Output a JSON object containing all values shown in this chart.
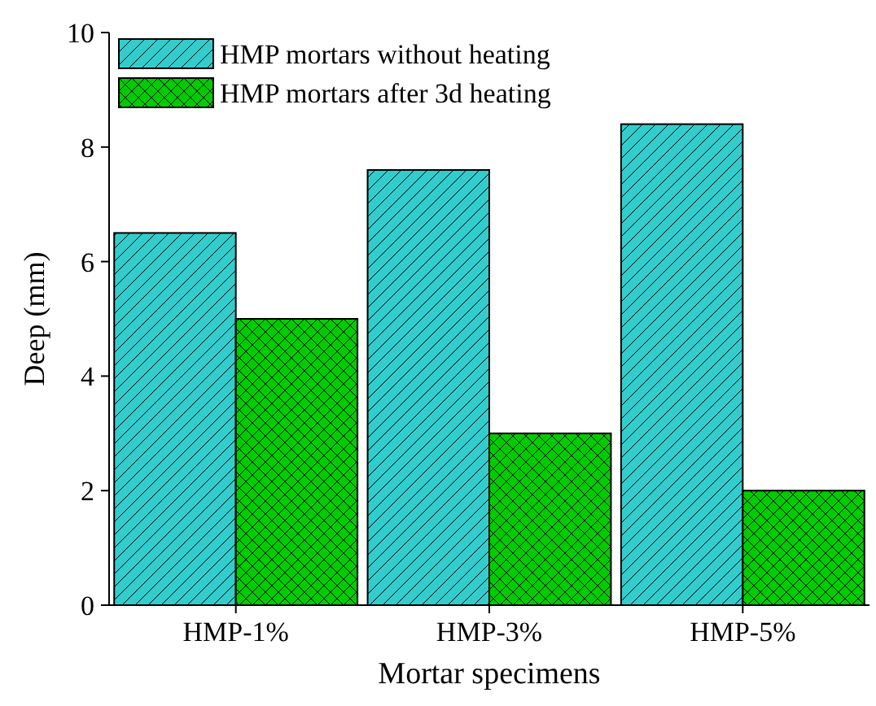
{
  "chart_data": {
    "type": "bar",
    "xlabel": "Mortar specimens",
    "ylabel": "Deep (mm)",
    "categories": [
      "HMP-1%",
      "HMP-3%",
      "HMP-5%"
    ],
    "series": [
      {
        "name": "HMP mortars without heating",
        "color": "#33cccc",
        "values": [
          6.5,
          7.6,
          8.4
        ]
      },
      {
        "name": "HMP mortars after 3d heating",
        "color": "#00cc00",
        "values": [
          5.0,
          3.0,
          2.0
        ]
      }
    ],
    "ylim": [
      0,
      10
    ],
    "yticks": [
      0,
      2,
      4,
      6,
      8,
      10
    ],
    "grid": false,
    "legend": "top left"
  }
}
